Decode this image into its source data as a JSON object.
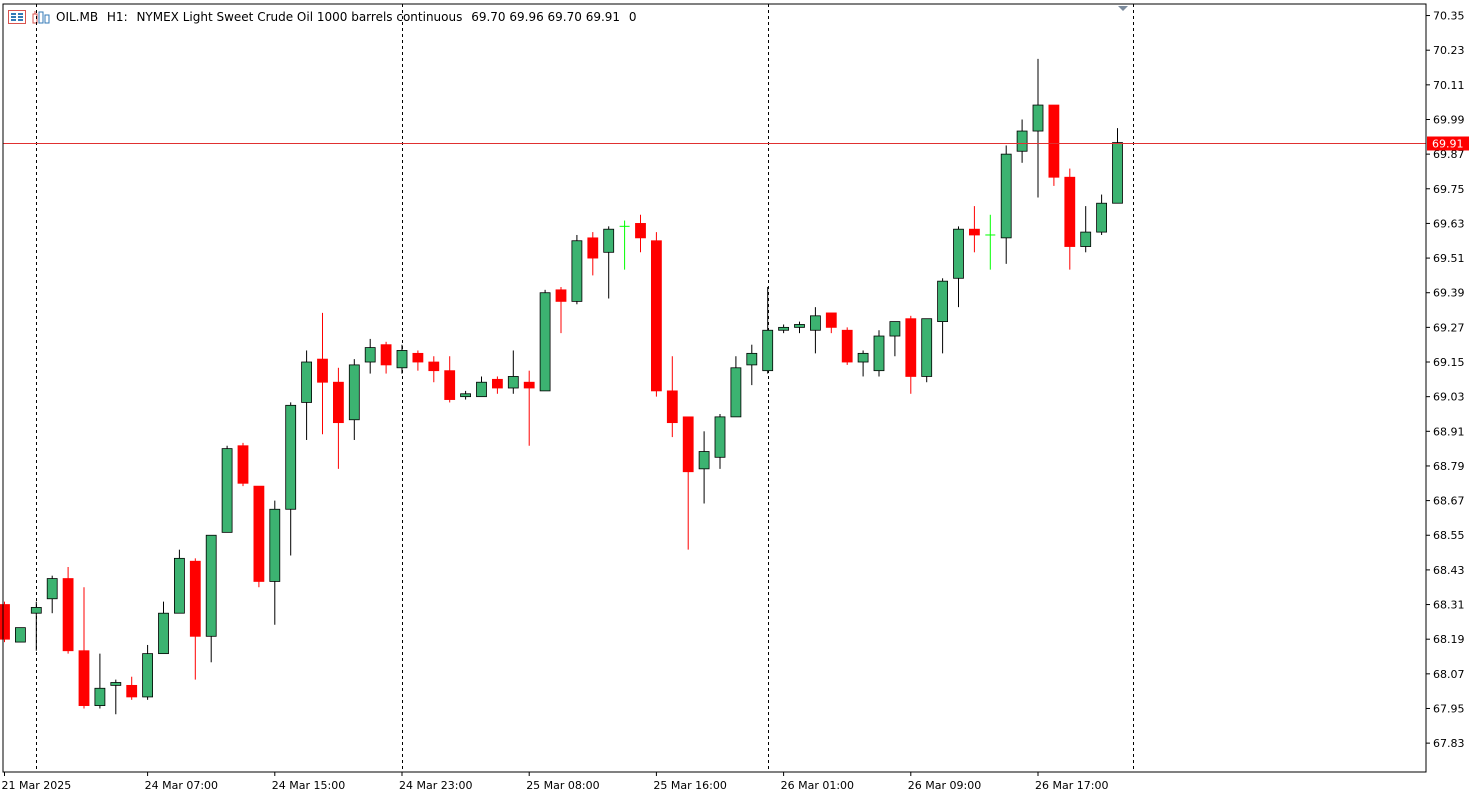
{
  "header": {
    "symbol": "OIL.MB",
    "timeframe": "H1:",
    "description": "NYMEX Light Sweet Crude Oil 1000 barrels continuous",
    "ohlc": "69.70 69.96 69.70 69.91",
    "volume": "0",
    "icons": [
      "chart-properties-icon",
      "indicators-icon"
    ]
  },
  "colors": {
    "bull": "#3cb371",
    "bear": "#ff0000",
    "doji": "#00ff00",
    "outline": "#000000",
    "priceLine": "#e03030",
    "grid": "#000000"
  },
  "chart_data": {
    "type": "candlestick",
    "symbol": "OIL.MB",
    "timeframe": "H1",
    "current_price": "69.91",
    "ylim": [
      67.73,
      70.39
    ],
    "y_ticks": [
      "70.35",
      "70.23",
      "70.11",
      "69.99",
      "69.87",
      "69.75",
      "69.63",
      "69.51",
      "69.39",
      "69.27",
      "69.15",
      "69.03",
      "68.91",
      "68.79",
      "68.67",
      "68.55",
      "68.43",
      "68.31",
      "68.19",
      "68.07",
      "67.95",
      "67.83"
    ],
    "x_labels": [
      {
        "label": "21 Mar 2025",
        "index": 0
      },
      {
        "label": "24 Mar 07:00",
        "index": 9
      },
      {
        "label": "24 Mar 15:00",
        "index": 17
      },
      {
        "label": "24 Mar 23:00",
        "index": 25
      },
      {
        "label": "25 Mar 08:00",
        "index": 33
      },
      {
        "label": "25 Mar 16:00",
        "index": 41
      },
      {
        "label": "26 Mar 01:00",
        "index": 49
      },
      {
        "label": "26 Mar 09:00",
        "index": 57
      },
      {
        "label": "26 Mar 17:00",
        "index": 65
      }
    ],
    "separators": [
      2,
      25,
      48,
      71
    ],
    "candles": [
      [
        68.31,
        68.32,
        68.18,
        68.19
      ],
      [
        68.18,
        68.23,
        68.18,
        68.23
      ],
      [
        68.28,
        68.32,
        68.15,
        68.3
      ],
      [
        68.33,
        68.41,
        68.28,
        68.4
      ],
      [
        68.4,
        68.44,
        68.14,
        68.15
      ],
      [
        68.15,
        68.37,
        67.95,
        67.96
      ],
      [
        67.96,
        68.14,
        67.95,
        68.02
      ],
      [
        68.03,
        68.05,
        67.93,
        68.04
      ],
      [
        68.03,
        68.06,
        67.98,
        67.99
      ],
      [
        67.99,
        68.17,
        67.98,
        68.14
      ],
      [
        68.14,
        68.32,
        68.14,
        68.28
      ],
      [
        68.28,
        68.5,
        68.28,
        68.47
      ],
      [
        68.46,
        68.47,
        68.05,
        68.2
      ],
      [
        68.2,
        68.55,
        68.11,
        68.55
      ],
      [
        68.56,
        68.86,
        68.56,
        68.85
      ],
      [
        68.86,
        68.87,
        68.72,
        68.73
      ],
      [
        68.72,
        68.72,
        68.37,
        68.39
      ],
      [
        68.39,
        68.67,
        68.24,
        68.64
      ],
      [
        68.64,
        69.01,
        68.48,
        69.0
      ],
      [
        69.01,
        69.19,
        68.88,
        69.15
      ],
      [
        69.16,
        69.32,
        68.9,
        69.08
      ],
      [
        69.08,
        69.13,
        68.78,
        68.94
      ],
      [
        68.95,
        69.16,
        68.88,
        69.14
      ],
      [
        69.15,
        69.23,
        69.11,
        69.2
      ],
      [
        69.21,
        69.22,
        69.11,
        69.14
      ],
      [
        69.13,
        69.21,
        69.11,
        69.19
      ],
      [
        69.18,
        69.19,
        69.12,
        69.15
      ],
      [
        69.15,
        69.17,
        69.08,
        69.12
      ],
      [
        69.12,
        69.17,
        69.01,
        69.02
      ],
      [
        69.03,
        69.05,
        69.02,
        69.04
      ],
      [
        69.03,
        69.1,
        69.03,
        69.08
      ],
      [
        69.09,
        69.1,
        69.04,
        69.06
      ],
      [
        69.06,
        69.19,
        69.04,
        69.1
      ],
      [
        69.08,
        69.12,
        68.86,
        69.06
      ],
      [
        69.05,
        69.4,
        69.05,
        69.39
      ],
      [
        69.4,
        69.41,
        69.25,
        69.36
      ],
      [
        69.36,
        69.59,
        69.35,
        69.57
      ],
      [
        69.58,
        69.6,
        69.45,
        69.51
      ],
      [
        69.53,
        69.62,
        69.37,
        69.61
      ],
      [
        69.62,
        69.64,
        69.47,
        69.62
      ],
      [
        69.63,
        69.66,
        69.53,
        69.58
      ],
      [
        69.57,
        69.6,
        69.03,
        69.05
      ],
      [
        69.05,
        69.17,
        68.89,
        68.94
      ],
      [
        68.96,
        68.96,
        68.5,
        68.77
      ],
      [
        68.78,
        68.91,
        68.66,
        68.84
      ],
      [
        68.82,
        68.97,
        68.78,
        68.96
      ],
      [
        68.96,
        69.17,
        68.96,
        69.13
      ],
      [
        69.14,
        69.21,
        69.07,
        69.18
      ],
      [
        69.12,
        69.41,
        69.11,
        69.26
      ],
      [
        69.26,
        69.28,
        69.25,
        69.27
      ],
      [
        69.27,
        69.29,
        69.25,
        69.28
      ],
      [
        69.26,
        69.34,
        69.18,
        69.31
      ],
      [
        69.32,
        69.32,
        69.25,
        69.27
      ],
      [
        69.26,
        69.27,
        69.14,
        69.15
      ],
      [
        69.15,
        69.19,
        69.1,
        69.18
      ],
      [
        69.12,
        69.26,
        69.1,
        69.24
      ],
      [
        69.24,
        69.29,
        69.17,
        69.29
      ],
      [
        69.3,
        69.31,
        69.04,
        69.1
      ],
      [
        69.1,
        69.3,
        69.08,
        69.3
      ],
      [
        69.29,
        69.44,
        69.18,
        69.43
      ],
      [
        69.44,
        69.62,
        69.34,
        69.61
      ],
      [
        69.61,
        69.69,
        69.53,
        69.59
      ],
      [
        69.59,
        69.66,
        69.47,
        69.59
      ],
      [
        69.58,
        69.9,
        69.49,
        69.87
      ],
      [
        69.88,
        69.99,
        69.84,
        69.95
      ],
      [
        69.95,
        70.2,
        69.72,
        70.04
      ],
      [
        70.04,
        70.04,
        69.76,
        69.79
      ],
      [
        69.79,
        69.82,
        69.47,
        69.55
      ],
      [
        69.55,
        69.69,
        69.53,
        69.6
      ],
      [
        69.6,
        69.73,
        69.59,
        69.7
      ],
      [
        69.7,
        69.96,
        69.7,
        69.91
      ]
    ]
  }
}
